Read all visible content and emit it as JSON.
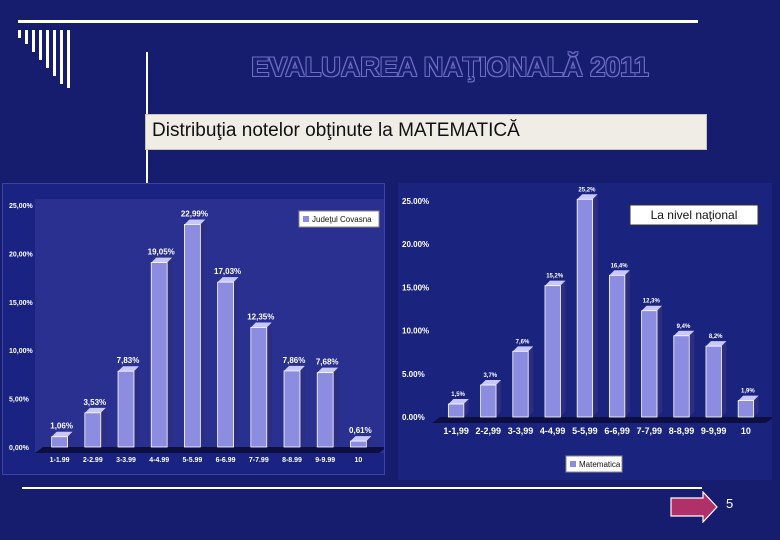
{
  "slide": {
    "title": "EVALUAREA NAŢIONALĂ 2011",
    "subtitle": "Distribuţia notelor obţinute la MATEMATICĂ",
    "page_number": "5",
    "colors": {
      "background": "#171d6e",
      "bar_fill": "#8c8ce0",
      "bar_side": "#3a3a8a"
    }
  },
  "chart_data": [
    {
      "type": "bar",
      "categories": [
        "1-1.99",
        "2-2.99",
        "3-3.99",
        "4-4.99",
        "5-5.99",
        "6-6.99",
        "7-7.99",
        "8-8.99",
        "9-9.99",
        "10"
      ],
      "series": [
        {
          "name": "Judeţul Covasna",
          "values": [
            1.06,
            3.53,
            7.83,
            19.05,
            22.99,
            17.03,
            12.35,
            7.86,
            7.68,
            0.61
          ]
        }
      ],
      "data_labels": [
        "1,06%",
        "3,53%",
        "7,83%",
        "19,05%",
        "22,99%",
        "17,03%",
        "12,35%",
        "7,86%",
        "7,68%",
        "0,61%"
      ],
      "yticks": [
        "0,00%",
        "5,00%",
        "10,00%",
        "15,00%",
        "20,00%",
        "25,00%"
      ],
      "ylim": [
        0,
        25
      ],
      "legend": "top-right",
      "grid": false
    },
    {
      "type": "bar",
      "annotation": "La nivel naţional",
      "categories": [
        "1-1,99",
        "2-2,99",
        "3-3,99",
        "4-4,99",
        "5-5,99",
        "6-6,99",
        "7-7,99",
        "8-8,99",
        "9-9,99",
        "10"
      ],
      "series": [
        {
          "name": "Matematica",
          "values": [
            1.5,
            3.7,
            7.6,
            15.2,
            25.2,
            16.4,
            12.3,
            9.4,
            8.2,
            1.9
          ]
        }
      ],
      "data_labels": [
        "1,5%",
        "3,7%",
        "7,6%",
        "15,2%",
        "25,2%",
        "16,4%",
        "12,3%",
        "9,4%",
        "8,2%",
        "1,9%"
      ],
      "yticks": [
        "0.00%",
        "5.00%",
        "10.00%",
        "15.00%",
        "20.00%",
        "25.00%"
      ],
      "ylim": [
        0,
        25
      ],
      "legend": "bottom-center",
      "grid": false
    }
  ]
}
